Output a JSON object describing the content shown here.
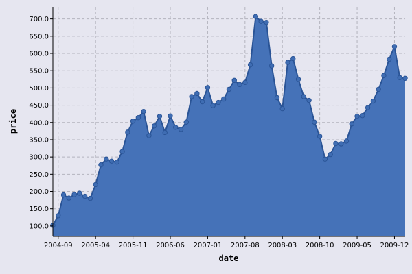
{
  "chart_data": {
    "type": "area",
    "xlabel": "date",
    "ylabel": "price",
    "xlim": [
      "2004-08-01",
      "2010-02-01"
    ],
    "ylim": [
      70,
      735
    ],
    "grid": true,
    "y_ticks": [
      "100.0",
      "150.0",
      "200.0",
      "250.0",
      "300.0",
      "350.0",
      "400.0",
      "450.0",
      "500.0",
      "550.0",
      "600.0",
      "650.0",
      "700.0"
    ],
    "x_ticks": [
      "2004-09",
      "2005-04",
      "2005-11",
      "2006-06",
      "2007-01",
      "2007-08",
      "2008-03",
      "2008-10",
      "2009-05",
      "2009-12"
    ],
    "colors": {
      "fill": "#4572b8",
      "line": "#2a5496",
      "marker": "#3f6db3",
      "grid": "#b4b4be",
      "plot_background": "#e6e6f0"
    },
    "series": [
      {
        "x": [
          "2004-08",
          "2004-09",
          "2004-10",
          "2004-11",
          "2004-12",
          "2005-01",
          "2005-02",
          "2005-03",
          "2005-04",
          "2005-05",
          "2005-06",
          "2005-07",
          "2005-08",
          "2005-09",
          "2005-10",
          "2005-11",
          "2005-12",
          "2006-01",
          "2006-02",
          "2006-03",
          "2006-04",
          "2006-05",
          "2006-06",
          "2006-07",
          "2006-08",
          "2006-09",
          "2006-10",
          "2006-11",
          "2006-12",
          "2007-01",
          "2007-02",
          "2007-03",
          "2007-04",
          "2007-05",
          "2007-06",
          "2007-07",
          "2007-08",
          "2007-09",
          "2007-10",
          "2007-11",
          "2007-12",
          "2008-01",
          "2008-02",
          "2008-03",
          "2008-04",
          "2008-05",
          "2008-06",
          "2008-07",
          "2008-08",
          "2008-09",
          "2008-10",
          "2008-11",
          "2008-12",
          "2009-01",
          "2009-02",
          "2009-03",
          "2009-04",
          "2009-05",
          "2009-06",
          "2009-07",
          "2009-08",
          "2009-09",
          "2009-10",
          "2009-11",
          "2009-12",
          "2010-01",
          "2010-02"
        ],
        "values": [
          102,
          130,
          190,
          181,
          191,
          195,
          186,
          180,
          220,
          277,
          294,
          288,
          285,
          316,
          372,
          404,
          414,
          432,
          362,
          390,
          418,
          371,
          419,
          386,
          380,
          401,
          475,
          484,
          460,
          501,
          449,
          458,
          468,
          496,
          522,
          510,
          516,
          567,
          707,
          693,
          690,
          564,
          472,
          440,
          574,
          585,
          525,
          475,
          464,
          401,
          360,
          294,
          307,
          339,
          338,
          346,
          396,
          418,
          420,
          443,
          462,
          496,
          536,
          583,
          620,
          530,
          528
        ]
      },
      {
        "x": [],
        "values": []
      }
    ]
  }
}
